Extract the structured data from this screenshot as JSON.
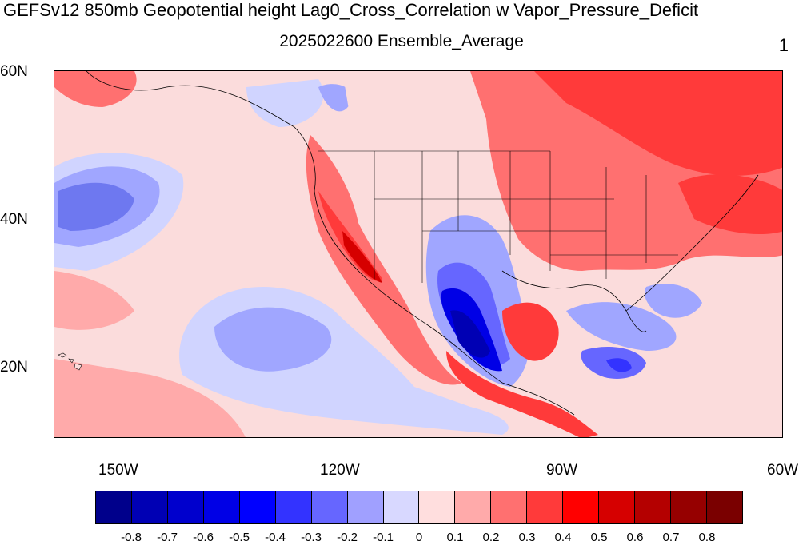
{
  "title": "GEFSv12 850mb Geopotential height Lag0_Cross_Correlation w Vapor_Pressure_Deficit",
  "subtitle": "2025022600 Ensemble_Average",
  "corner_label": "1",
  "lat_labels": [
    "60N",
    "40N",
    "20N"
  ],
  "lon_labels": [
    "150W",
    "120W",
    "90W",
    "60W"
  ],
  "colorbar": {
    "colors": [
      "#00008b",
      "#0000b4",
      "#0000cd",
      "#0000e6",
      "#0000ff",
      "#3333ff",
      "#6666ff",
      "#a0a0ff",
      "#d8d8ff",
      "#ffdede",
      "#ffaaaa",
      "#ff7070",
      "#ff3a3a",
      "#ff0000",
      "#d60000",
      "#b40000",
      "#960000",
      "#7a0000"
    ],
    "labels": [
      "-0.8",
      "-0.7",
      "-0.6",
      "-0.5",
      "-0.4",
      "-0.3",
      "-0.2",
      "-0.1",
      "0",
      "0.1",
      "0.2",
      "0.3",
      "0.4",
      "0.5",
      "0.6",
      "0.7",
      "0.8"
    ]
  }
}
